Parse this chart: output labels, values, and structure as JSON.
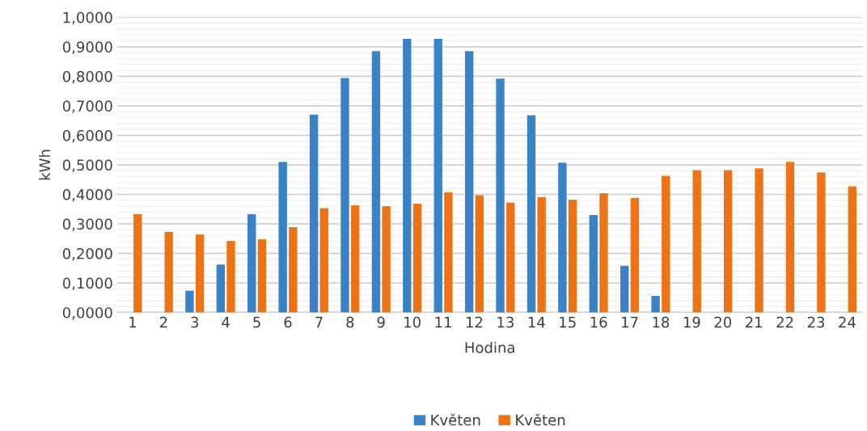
{
  "chart_data": {
    "type": "bar",
    "xlabel": "Hodina",
    "ylabel": "kWh",
    "categories": [
      "1",
      "2",
      "3",
      "4",
      "5",
      "6",
      "7",
      "8",
      "9",
      "10",
      "11",
      "12",
      "13",
      "14",
      "15",
      "16",
      "17",
      "18",
      "19",
      "20",
      "21",
      "22",
      "23",
      "24"
    ],
    "series": [
      {
        "name": "Květen",
        "color": "#3a82c8",
        "values": [
          null,
          null,
          0.074,
          0.162,
          0.333,
          0.51,
          0.67,
          0.794,
          0.885,
          0.927,
          0.927,
          0.885,
          0.792,
          0.668,
          0.507,
          0.33,
          0.158,
          0.056,
          null,
          null,
          null,
          null,
          null,
          null
        ]
      },
      {
        "name": "Květen",
        "color": "#ee7314",
        "values": [
          0.333,
          0.273,
          0.264,
          0.242,
          0.248,
          0.289,
          0.353,
          0.363,
          0.36,
          0.368,
          0.407,
          0.397,
          0.372,
          0.391,
          0.382,
          0.404,
          0.388,
          0.463,
          0.482,
          0.482,
          0.488,
          0.51,
          0.474,
          0.427
        ]
      }
    ],
    "ylim": [
      0,
      1.0
    ],
    "yticks": [
      {
        "value": 0,
        "label": "0,0000"
      },
      {
        "value": 0.1,
        "label": "0,1000"
      },
      {
        "value": 0.2,
        "label": "0,2000"
      },
      {
        "value": 0.3,
        "label": "0,3000"
      },
      {
        "value": 0.4,
        "label": "0,4000"
      },
      {
        "value": 0.5,
        "label": "0,5000"
      },
      {
        "value": 0.6,
        "label": "0,6000"
      },
      {
        "value": 0.7,
        "label": "0,7000"
      },
      {
        "value": 0.8,
        "label": "0,8000"
      },
      {
        "value": 0.9,
        "label": "0,9000"
      },
      {
        "value": 1.0,
        "label": "1,0000"
      }
    ],
    "grid": "y",
    "legend": "bottom"
  }
}
